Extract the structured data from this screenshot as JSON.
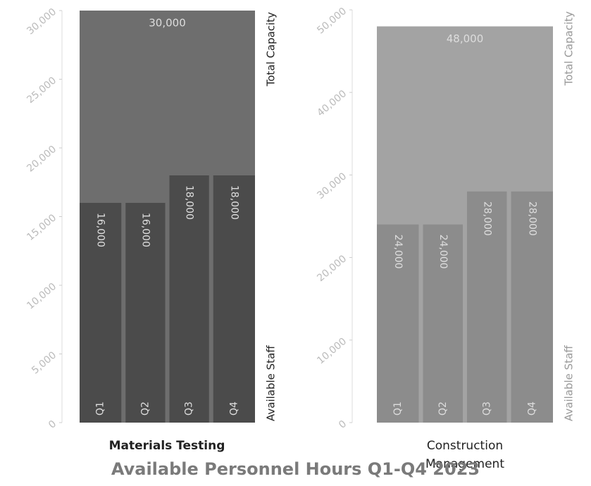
{
  "title": "Available Personnel Hours Q1-Q4 2023",
  "chart_data": [
    {
      "type": "bar",
      "title": "Materials Testing",
      "total_name": "Total Capacity",
      "total": 30000,
      "total_label": "30,000",
      "total_color": "#6e6e6e",
      "series_name": "Available Staff",
      "color": "#4b4b4b",
      "categories": [
        "Q1",
        "Q2",
        "Q3",
        "Q4"
      ],
      "values": [
        16000,
        16000,
        18000,
        18000
      ],
      "value_labels": [
        "16,000",
        "16,000",
        "18,000",
        "18,000"
      ],
      "ylim": [
        0,
        30000
      ],
      "yticks": [
        {
          "value": 0,
          "label": "0"
        },
        {
          "value": 5000,
          "label": "5,000"
        },
        {
          "value": 10000,
          "label": "10,000"
        },
        {
          "value": 15000,
          "label": "15,000"
        },
        {
          "value": 20000,
          "label": "20,000"
        },
        {
          "value": 25000,
          "label": "25,000"
        },
        {
          "value": 30000,
          "label": "30,000"
        }
      ]
    },
    {
      "type": "bar",
      "title": "Construction Management",
      "total_name": "Total Capacity",
      "total": 48000,
      "total_label": "48,000",
      "total_color": "#a3a3a3",
      "series_name": "Available Staff",
      "color": "#8c8c8c",
      "categories": [
        "Q1",
        "Q2",
        "Q3",
        "Q4"
      ],
      "values": [
        24000,
        24000,
        28000,
        28000
      ],
      "value_labels": [
        "24,000",
        "24,000",
        "28,000",
        "28,000"
      ],
      "ylim": [
        0,
        50000
      ],
      "yticks": [
        {
          "value": 0,
          "label": "0"
        },
        {
          "value": 10000,
          "label": "10,000"
        },
        {
          "value": 20000,
          "label": "20,000"
        },
        {
          "value": 30000,
          "label": "30,000"
        },
        {
          "value": 40000,
          "label": "40,000"
        },
        {
          "value": 50000,
          "label": "50,000"
        }
      ]
    }
  ]
}
